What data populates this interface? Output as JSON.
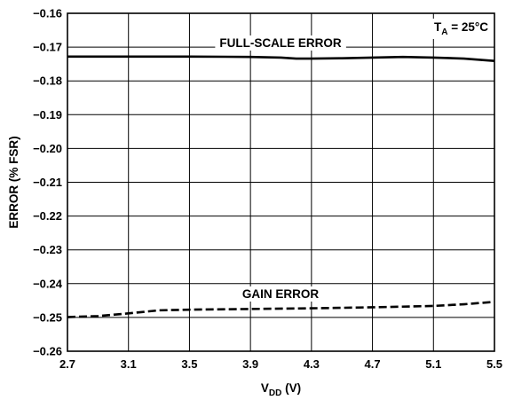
{
  "chart_data": {
    "type": "line",
    "xlabel_main": "V",
    "xlabel_sub": "DD",
    "xlabel_suffix": " (V)",
    "ylabel": "ERROR (% FSR)",
    "xlim": [
      2.7,
      5.5
    ],
    "ylim": [
      -0.26,
      -0.16
    ],
    "grid": true,
    "x_ticks": [
      2.7,
      3.1,
      3.5,
      3.9,
      4.3,
      4.7,
      5.1,
      5.5
    ],
    "x_tick_labels": [
      "2.7",
      "3.1",
      "3.5",
      "3.9",
      "4.3",
      "4.7",
      "5.1",
      "5.5"
    ],
    "y_ticks": [
      -0.16,
      -0.17,
      -0.18,
      -0.19,
      -0.2,
      -0.21,
      -0.22,
      -0.23,
      -0.24,
      -0.25,
      -0.26
    ],
    "y_tick_labels": [
      "−0.16",
      "−0.17",
      "−0.18",
      "−0.19",
      "−0.20",
      "−0.21",
      "−0.22",
      "−0.23",
      "−0.24",
      "−0.25",
      "−0.26"
    ],
    "condition_main": "T",
    "condition_sub": "A",
    "condition_suffix": " = 25°C",
    "series": [
      {
        "name": "FULL-SCALE ERROR",
        "style": "solid",
        "x": [
          2.7,
          3.1,
          3.5,
          3.9,
          4.1,
          4.2,
          4.3,
          4.5,
          4.7,
          4.9,
          5.1,
          5.3,
          5.5
        ],
        "y": [
          -0.1728,
          -0.1728,
          -0.1728,
          -0.1729,
          -0.1731,
          -0.1734,
          -0.1734,
          -0.1733,
          -0.1731,
          -0.1729,
          -0.1731,
          -0.1734,
          -0.1741
        ]
      },
      {
        "name": "GAIN ERROR",
        "style": "dashed",
        "x": [
          2.7,
          2.9,
          3.1,
          3.3,
          3.5,
          3.9,
          4.3,
          4.7,
          5.1,
          5.3,
          5.5
        ],
        "y": [
          -0.2499,
          -0.2496,
          -0.2488,
          -0.2479,
          -0.2477,
          -0.2475,
          -0.2473,
          -0.247,
          -0.2466,
          -0.2461,
          -0.2454
        ]
      }
    ]
  }
}
